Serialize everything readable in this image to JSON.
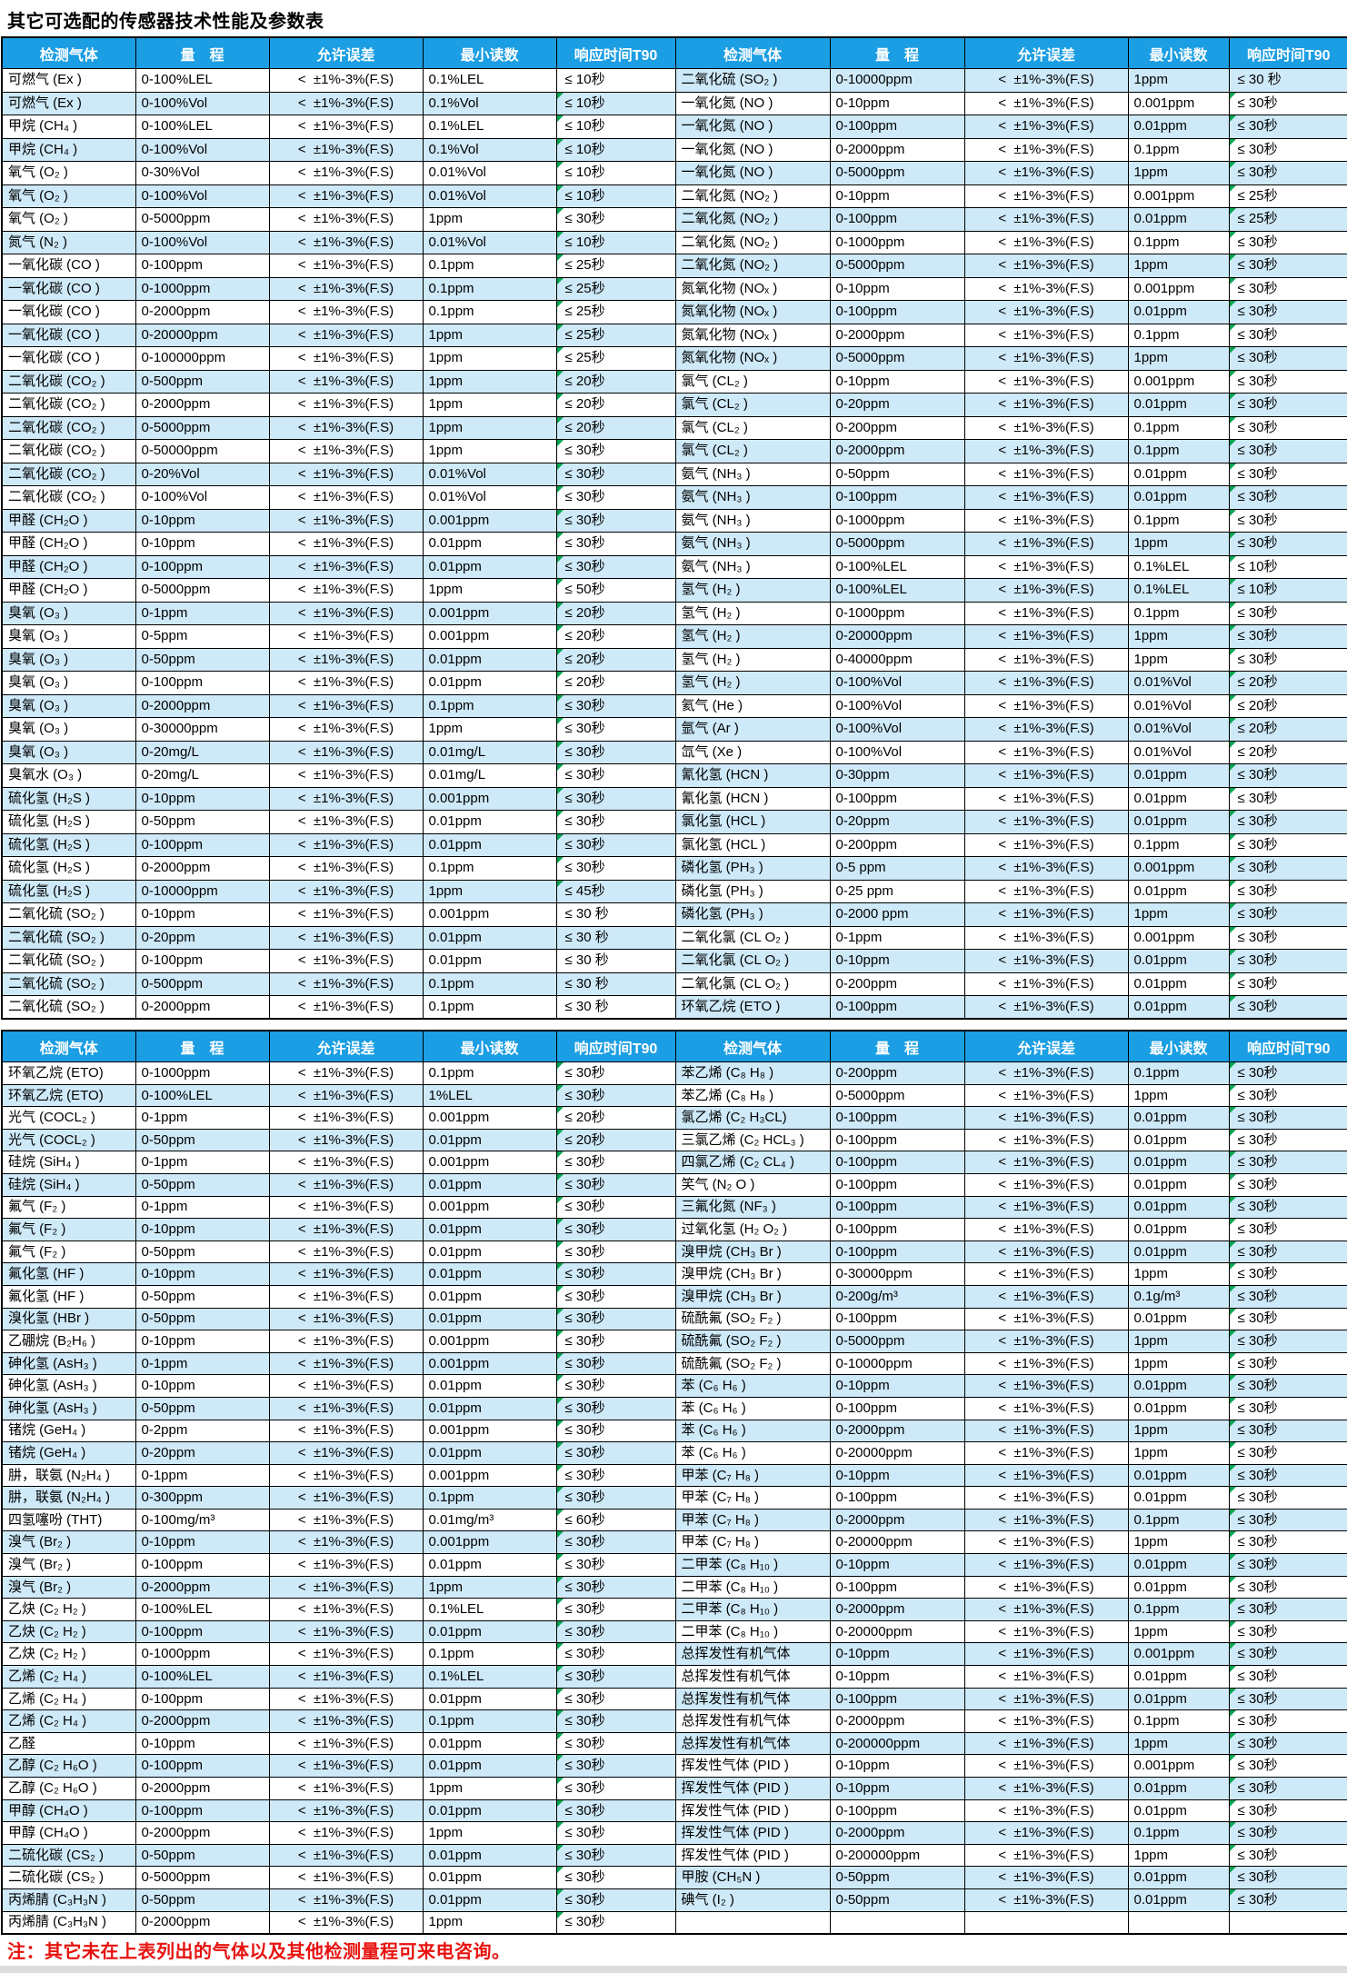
{
  "title": "其它可选配的传感器技术性能及参数表",
  "note": "注：其它未在上表列出的气体以及其他检测量程可来电咨询。",
  "header": {
    "gas": "检测气体",
    "range": "量　程",
    "error": "允许误差",
    "min_reading": "最小读数",
    "t90": "响应时间T90"
  },
  "error_value": "<  ±1%-3%(F.S)",
  "colors": {
    "header_bg": "#1B9EE3",
    "header_text": "#FFFFFF",
    "row_bg": "#FFFFFF",
    "row_alt_bg": "#CEE9F8",
    "border": "#000000",
    "note_color": "#E8120E",
    "triangle": "#00A651",
    "bottom_strip": "#DBDDDE"
  },
  "tables": [
    {
      "left_rows": [
        [
          "可燃气 (Ex )",
          "0-100%LEL",
          "0.1%LEL",
          "≤ 10秒"
        ],
        [
          "可燃气 (Ex )",
          "0-100%Vol",
          "0.1%Vol",
          "≤ 10秒"
        ],
        [
          "甲烷 (CH₄ )",
          "0-100%LEL",
          "0.1%LEL",
          "≤ 10秒"
        ],
        [
          "甲烷 (CH₄ )",
          "0-100%Vol",
          "0.1%Vol",
          "≤ 10秒"
        ],
        [
          "氧气 (O₂ )",
          "0-30%Vol",
          "0.01%Vol",
          "≤ 10秒"
        ],
        [
          "氧气 (O₂ )",
          "0-100%Vol",
          "0.01%Vol",
          "≤ 10秒"
        ],
        [
          "氧气 (O₂ )",
          "0-5000ppm",
          "1ppm",
          "≤ 30秒"
        ],
        [
          "氮气 (N₂ )",
          "0-100%Vol",
          "0.01%Vol",
          "≤ 10秒"
        ],
        [
          "一氧化碳 (CO )",
          "0-100ppm",
          "0.1ppm",
          "≤ 25秒"
        ],
        [
          "一氧化碳 (CO )",
          "0-1000ppm",
          "0.1ppm",
          "≤ 25秒"
        ],
        [
          "一氧化碳 (CO )",
          "0-2000ppm",
          "0.1ppm",
          "≤ 25秒"
        ],
        [
          "一氧化碳 (CO )",
          "0-20000ppm",
          "1ppm",
          "≤ 25秒"
        ],
        [
          "一氧化碳 (CO )",
          "0-100000ppm",
          "1ppm",
          "≤ 25秒"
        ],
        [
          "二氧化碳 (CO₂ )",
          "0-500ppm",
          "1ppm",
          "≤ 20秒"
        ],
        [
          "二氧化碳 (CO₂ )",
          "0-2000ppm",
          "1ppm",
          "≤ 20秒"
        ],
        [
          "二氧化碳 (CO₂ )",
          "0-5000ppm",
          "1ppm",
          "≤ 20秒"
        ],
        [
          "二氧化碳 (CO₂ )",
          "0-50000ppm",
          "1ppm",
          "≤ 30秒"
        ],
        [
          "二氧化碳 (CO₂ )",
          "0-20%Vol",
          "0.01%Vol",
          "≤ 30秒"
        ],
        [
          "二氧化碳 (CO₂ )",
          "0-100%Vol",
          "0.01%Vol",
          "≤ 30秒"
        ],
        [
          "甲醛 (CH₂O )",
          "0-10ppm",
          "0.001ppm",
          "≤ 30秒"
        ],
        [
          "甲醛 (CH₂O )",
          "0-10ppm",
          "0.01ppm",
          "≤ 30秒"
        ],
        [
          "甲醛 (CH₂O )",
          "0-100ppm",
          "0.01ppm",
          "≤ 30秒"
        ],
        [
          "甲醛 (CH₂O )",
          "0-5000ppm",
          "1ppm",
          "≤ 50秒"
        ],
        [
          "臭氧 (O₃ )",
          "0-1ppm",
          "0.001ppm",
          "≤ 20秒"
        ],
        [
          "臭氧 (O₃ )",
          "0-5ppm",
          "0.001ppm",
          "≤ 20秒"
        ],
        [
          "臭氧 (O₃ )",
          "0-50ppm",
          "0.01ppm",
          "≤ 20秒"
        ],
        [
          "臭氧 (O₃ )",
          "0-100ppm",
          "0.01ppm",
          "≤ 20秒"
        ],
        [
          "臭氧 (O₃ )",
          "0-2000ppm",
          "0.1ppm",
          "≤ 30秒"
        ],
        [
          "臭氧 (O₃ )",
          "0-30000ppm",
          "1ppm",
          "≤ 30秒"
        ],
        [
          "臭氧 (O₃ )",
          "0-20mg/L",
          "0.01mg/L",
          "≤ 30秒"
        ],
        [
          "臭氧水 (O₃ )",
          "0-20mg/L",
          "0.01mg/L",
          "≤ 30秒"
        ],
        [
          "硫化氢 (H₂S )",
          "0-10ppm",
          "0.001ppm",
          "≤ 30秒"
        ],
        [
          "硫化氢 (H₂S )",
          "0-50ppm",
          "0.01ppm",
          "≤ 30秒"
        ],
        [
          "硫化氢 (H₂S )",
          "0-100ppm",
          "0.01ppm",
          "≤ 30秒"
        ],
        [
          "硫化氢 (H₂S )",
          "0-2000ppm",
          "0.1ppm",
          "≤ 30秒"
        ],
        [
          "硫化氢 (H₂S )",
          "0-10000ppm",
          "1ppm",
          "≤ 45秒"
        ],
        [
          "二氧化硫 (SO₂ )",
          "0-10ppm",
          "0.001ppm",
          "≤ 30 秒"
        ],
        [
          "二氧化硫 (SO₂ )",
          "0-20ppm",
          "0.01ppm",
          "≤ 30 秒"
        ],
        [
          "二氧化硫 (SO₂ )",
          "0-100ppm",
          "0.01ppm",
          "≤ 30 秒"
        ],
        [
          "二氧化硫 (SO₂ )",
          "0-500ppm",
          "0.1ppm",
          "≤ 30 秒"
        ],
        [
          "二氧化硫 (SO₂ )",
          "0-2000ppm",
          "0.1ppm",
          "≤ 30 秒"
        ]
      ],
      "right_rows": [
        [
          "二氧化硫 (SO₂ )",
          "0-10000ppm",
          "1ppm",
          "≤ 30 秒"
        ],
        [
          "一氧化氮 (NO )",
          "0-10ppm",
          "0.001ppm",
          "≤ 30秒"
        ],
        [
          "一氧化氮 (NO )",
          "0-100ppm",
          "0.01ppm",
          "≤ 30秒"
        ],
        [
          "一氧化氮 (NO )",
          "0-2000ppm",
          "0.1ppm",
          "≤ 30秒"
        ],
        [
          "一氧化氮 (NO )",
          "0-5000ppm",
          "1ppm",
          "≤ 30秒"
        ],
        [
          "二氧化氮 (NO₂ )",
          "0-10ppm",
          "0.001ppm",
          "≤ 25秒"
        ],
        [
          "二氧化氮 (NO₂ )",
          "0-100ppm",
          "0.01ppm",
          "≤ 25秒"
        ],
        [
          "二氧化氮 (NO₂ )",
          "0-1000ppm",
          "0.1ppm",
          "≤ 30秒"
        ],
        [
          "二氧化氮 (NO₂ )",
          "0-5000ppm",
          "1ppm",
          "≤ 30秒"
        ],
        [
          "氮氧化物 (NOₓ )",
          "0-10ppm",
          "0.001ppm",
          "≤ 30秒"
        ],
        [
          "氮氧化物 (NOₓ )",
          "0-100ppm",
          "0.01ppm",
          "≤ 30秒"
        ],
        [
          "氮氧化物 (NOₓ )",
          "0-2000ppm",
          "0.1ppm",
          "≤ 30秒"
        ],
        [
          "氮氧化物 (NOₓ )",
          "0-5000ppm",
          "1ppm",
          "≤ 30秒"
        ],
        [
          "氯气 (CL₂ )",
          "0-10ppm",
          "0.001ppm",
          "≤ 30秒"
        ],
        [
          "氯气 (CL₂ )",
          "0-20ppm",
          "0.01ppm",
          "≤ 30秒"
        ],
        [
          "氯气 (CL₂ )",
          "0-200ppm",
          "0.1ppm",
          "≤ 30秒"
        ],
        [
          "氯气 (CL₂ )",
          "0-2000ppm",
          "0.1ppm",
          "≤ 30秒"
        ],
        [
          "氨气 (NH₃ )",
          "0-50ppm",
          "0.01ppm",
          "≤ 30秒"
        ],
        [
          "氨气 (NH₃ )",
          "0-100ppm",
          "0.01ppm",
          "≤ 30秒"
        ],
        [
          "氨气 (NH₃ )",
          "0-1000ppm",
          "0.1ppm",
          "≤ 30秒"
        ],
        [
          "氨气 (NH₃ )",
          "0-5000ppm",
          "1ppm",
          "≤ 30秒"
        ],
        [
          "氨气 (NH₃ )",
          "0-100%LEL",
          "0.1%LEL",
          "≤ 10秒"
        ],
        [
          "氢气 (H₂ )",
          "0-100%LEL",
          "0.1%LEL",
          "≤ 10秒"
        ],
        [
          "氢气 (H₂ )",
          "0-1000ppm",
          "0.1ppm",
          "≤ 30秒"
        ],
        [
          "氢气 (H₂ )",
          "0-20000ppm",
          "1ppm",
          "≤ 30秒"
        ],
        [
          "氢气 (H₂ )",
          "0-40000ppm",
          "1ppm",
          "≤ 30秒"
        ],
        [
          "氢气 (H₂ )",
          "0-100%Vol",
          "0.01%Vol",
          "≤ 20秒"
        ],
        [
          "氦气 (He )",
          "0-100%Vol",
          "0.01%Vol",
          "≤ 20秒"
        ],
        [
          "氩气 (Ar )",
          "0-100%Vol",
          "0.01%Vol",
          "≤ 20秒"
        ],
        [
          "氙气 (Xe )",
          "0-100%Vol",
          "0.01%Vol",
          "≤ 20秒"
        ],
        [
          "氰化氢 (HCN )",
          "0-30ppm",
          "0.01ppm",
          "≤ 30秒"
        ],
        [
          "氰化氢 (HCN )",
          "0-100ppm",
          "0.01ppm",
          "≤ 30秒"
        ],
        [
          "氯化氢 (HCL )",
          "0-20ppm",
          "0.01ppm",
          "≤ 30秒"
        ],
        [
          "氯化氢 (HCL )",
          "0-200ppm",
          "0.1ppm",
          "≤ 30秒"
        ],
        [
          "磷化氢 (PH₃ )",
          "0-5 ppm",
          "0.001ppm",
          "≤ 30秒"
        ],
        [
          "磷化氢 (PH₃ )",
          "0-25 ppm",
          "0.01ppm",
          "≤ 30秒"
        ],
        [
          "磷化氢 (PH₃ )",
          "0-2000 ppm",
          "1ppm",
          "≤ 30秒"
        ],
        [
          "二氧化氯 (CL O₂ )",
          "0-1ppm",
          "0.001ppm",
          "≤ 30秒"
        ],
        [
          "二氧化氯 (CL O₂ )",
          "0-10ppm",
          "0.01ppm",
          "≤ 30秒"
        ],
        [
          "二氧化氯 (CL O₂ )",
          "0-200ppm",
          "0.01ppm",
          "≤ 30秒"
        ],
        [
          "环氧乙烷 (ETO )",
          "0-100ppm",
          "0.01ppm",
          "≤ 30秒"
        ]
      ]
    },
    {
      "left_rows": [
        [
          "环氧乙烷 (ETO)",
          "0-1000ppm",
          "0.1ppm",
          "≤ 30秒"
        ],
        [
          "环氧乙烷 (ETO)",
          "0-100%LEL",
          "1%LEL",
          "≤ 30秒"
        ],
        [
          "光气 (COCL₂ )",
          "0-1ppm",
          "0.001ppm",
          "≤ 20秒"
        ],
        [
          "光气 (COCL₂ )",
          "0-50ppm",
          "0.01ppm",
          "≤ 20秒"
        ],
        [
          "硅烷 (SiH₄ )",
          "0-1ppm",
          "0.001ppm",
          "≤ 30秒"
        ],
        [
          "硅烷 (SiH₄ )",
          "0-50ppm",
          "0.01ppm",
          "≤ 30秒"
        ],
        [
          "氟气 (F₂ )",
          "0-1ppm",
          "0.001ppm",
          "≤ 30秒"
        ],
        [
          "氟气 (F₂ )",
          "0-10ppm",
          "0.01ppm",
          "≤ 30秒"
        ],
        [
          "氟气 (F₂ )",
          "0-50ppm",
          "0.01ppm",
          "≤ 30秒"
        ],
        [
          "氟化氢 (HF )",
          "0-10ppm",
          "0.01ppm",
          "≤ 30秒"
        ],
        [
          "氟化氢 (HF )",
          "0-50ppm",
          "0.01ppm",
          "≤ 30秒"
        ],
        [
          "溴化氢 (HBr )",
          "0-50ppm",
          "0.01ppm",
          "≤ 30秒"
        ],
        [
          "乙硼烷 (B₂H₆ )",
          "0-10ppm",
          "0.001ppm",
          "≤ 30秒"
        ],
        [
          "砷化氢 (AsH₃ )",
          "0-1ppm",
          "0.001ppm",
          "≤ 30秒"
        ],
        [
          "砷化氢 (AsH₃ )",
          "0-10ppm",
          "0.01ppm",
          "≤ 30秒"
        ],
        [
          "砷化氢 (AsH₃ )",
          "0-50ppm",
          "0.01ppm",
          "≤ 30秒"
        ],
        [
          "锗烷 (GeH₄ )",
          "0-2ppm",
          "0.001ppm",
          "≤ 30秒"
        ],
        [
          "锗烷 (GeH₄ )",
          "0-20ppm",
          "0.01ppm",
          "≤ 30秒"
        ],
        [
          "肼，联氨 (N₂H₄ )",
          "0-1ppm",
          "0.001ppm",
          "≤ 30秒"
        ],
        [
          "肼，联氨 (N₂H₄ )",
          "0-300ppm",
          "0.1ppm",
          "≤ 30秒"
        ],
        [
          "四氢噻吩 (THT)",
          "0-100mg/m³",
          "0.01mg/m³",
          "≤ 60秒"
        ],
        [
          "溴气 (Br₂ )",
          "0-10ppm",
          "0.001ppm",
          "≤ 30秒"
        ],
        [
          "溴气 (Br₂ )",
          "0-100ppm",
          "0.01ppm",
          "≤ 30秒"
        ],
        [
          "溴气 (Br₂ )",
          "0-2000ppm",
          "1ppm",
          "≤ 30秒"
        ],
        [
          "乙炔 (C₂ H₂ )",
          "0-100%LEL",
          "0.1%LEL",
          "≤ 30秒"
        ],
        [
          "乙炔 (C₂ H₂ )",
          "0-100ppm",
          "0.01ppm",
          "≤ 30秒"
        ],
        [
          "乙炔 (C₂ H₂ )",
          "0-1000ppm",
          "0.1ppm",
          "≤ 30秒"
        ],
        [
          "乙烯 (C₂ H₄ )",
          "0-100%LEL",
          "0.1%LEL",
          "≤ 30秒"
        ],
        [
          "乙烯 (C₂ H₄ )",
          "0-100ppm",
          "0.01ppm",
          "≤ 30秒"
        ],
        [
          "乙烯 (C₂ H₄ )",
          "0-2000ppm",
          "0.1ppm",
          "≤ 30秒"
        ],
        [
          "乙醛",
          "0-10ppm",
          "0.01ppm",
          "≤ 30秒"
        ],
        [
          "乙醇 (C₂ H₆O )",
          "0-100ppm",
          "0.01ppm",
          "≤ 30秒"
        ],
        [
          "乙醇 (C₂ H₆O )",
          "0-2000ppm",
          "1ppm",
          "≤ 30秒"
        ],
        [
          "甲醇 (CH₄O )",
          "0-100ppm",
          "0.01ppm",
          "≤ 30秒"
        ],
        [
          "甲醇 (CH₄O )",
          "0-2000ppm",
          "1ppm",
          "≤ 30秒"
        ],
        [
          "二硫化碳 (CS₂ )",
          "0-50ppm",
          "0.01ppm",
          "≤ 30秒"
        ],
        [
          "二硫化碳 (CS₂ )",
          "0-5000ppm",
          "0.01ppm",
          "≤ 30秒"
        ],
        [
          "丙烯腈 (C₃H₃N )",
          "0-50ppm",
          "0.01ppm",
          "≤ 30秒"
        ],
        [
          "丙烯腈 (C₃H₃N )",
          "0-2000ppm",
          "1ppm",
          "≤ 30秒"
        ]
      ],
      "right_rows": [
        [
          "苯乙烯 (C₈ H₈ )",
          "0-200ppm",
          "0.1ppm",
          "≤ 30秒"
        ],
        [
          "苯乙烯 (C₈ H₈ )",
          "0-5000ppm",
          "1ppm",
          "≤ 30秒"
        ],
        [
          "氯乙烯 (C₂ H₃CL)",
          "0-100ppm",
          "0.01ppm",
          "≤ 30秒"
        ],
        [
          "三氯乙烯 (C₂ HCL₃ )",
          "0-100ppm",
          "0.01ppm",
          "≤ 30秒"
        ],
        [
          "四氯乙烯 (C₂ CL₄ )",
          "0-100ppm",
          "0.01ppm",
          "≤ 30秒"
        ],
        [
          "笑气 (N₂ O )",
          "0-100ppm",
          "0.01ppm",
          "≤ 30秒"
        ],
        [
          "三氟化氮 (NF₃ )",
          "0-100ppm",
          "0.01ppm",
          "≤ 30秒"
        ],
        [
          "过氧化氢 (H₂ O₂ )",
          "0-100ppm",
          "0.01ppm",
          "≤ 30秒"
        ],
        [
          "溴甲烷 (CH₃ Br )",
          "0-100ppm",
          "0.01ppm",
          "≤ 30秒"
        ],
        [
          "溴甲烷 (CH₃ Br )",
          "0-30000ppm",
          "1ppm",
          "≤ 30秒"
        ],
        [
          "溴甲烷 (CH₃ Br )",
          "0-200g/m³",
          "0.1g/m³",
          "≤ 30秒"
        ],
        [
          "硫酰氟 (SO₂ F₂ )",
          "0-100ppm",
          "0.01ppm",
          "≤ 30秒"
        ],
        [
          "硫酰氟 (SO₂ F₂ )",
          "0-5000ppm",
          "1ppm",
          "≤ 30秒"
        ],
        [
          "硫酰氟 (SO₂ F₂ )",
          "0-10000ppm",
          "1ppm",
          "≤ 30秒"
        ],
        [
          "苯 (C₆ H₆ )",
          "0-10ppm",
          "0.01ppm",
          "≤ 30秒"
        ],
        [
          "苯 (C₆ H₆ )",
          "0-100ppm",
          "0.01ppm",
          "≤ 30秒"
        ],
        [
          "苯 (C₆ H₆ )",
          "0-2000ppm",
          "1ppm",
          "≤ 30秒"
        ],
        [
          "苯 (C₆ H₆ )",
          "0-20000ppm",
          "1ppm",
          "≤ 30秒"
        ],
        [
          "甲苯 (C₇ H₈ )",
          "0-10ppm",
          "0.01ppm",
          "≤ 30秒"
        ],
        [
          "甲苯 (C₇ H₈ )",
          "0-100ppm",
          "0.01ppm",
          "≤ 30秒"
        ],
        [
          "甲苯 (C₇ H₈ )",
          "0-2000ppm",
          "0.1ppm",
          "≤ 30秒"
        ],
        [
          "甲苯 (C₇ H₈ )",
          "0-20000ppm",
          "1ppm",
          "≤ 30秒"
        ],
        [
          "二甲苯 (C₈ H₁₀ )",
          "0-10ppm",
          "0.01ppm",
          "≤ 30秒"
        ],
        [
          "二甲苯 (C₈ H₁₀ )",
          "0-100ppm",
          "0.01ppm",
          "≤ 30秒"
        ],
        [
          "二甲苯 (C₈ H₁₀ )",
          "0-2000ppm",
          "0.1ppm",
          "≤ 30秒"
        ],
        [
          "二甲苯 (C₈ H₁₀ )",
          "0-20000ppm",
          "1ppm",
          "≤ 30秒"
        ],
        [
          "总挥发性有机气体",
          "0-10ppm",
          "0.001ppm",
          "≤ 30秒"
        ],
        [
          "总挥发性有机气体",
          "0-10ppm",
          "0.01ppm",
          "≤ 30秒"
        ],
        [
          "总挥发性有机气体",
          "0-100ppm",
          "0.01ppm",
          "≤ 30秒"
        ],
        [
          "总挥发性有机气体",
          "0-2000ppm",
          "0.1ppm",
          "≤ 30秒"
        ],
        [
          "总挥发性有机气体",
          "0-200000ppm",
          "1ppm",
          "≤ 30秒"
        ],
        [
          "挥发性气体 (PID )",
          "0-10ppm",
          "0.001ppm",
          "≤ 30秒"
        ],
        [
          "挥发性气体 (PID )",
          "0-10ppm",
          "0.01ppm",
          "≤ 30秒"
        ],
        [
          "挥发性气体 (PID )",
          "0-100ppm",
          "0.01ppm",
          "≤ 30秒"
        ],
        [
          "挥发性气体 (PID )",
          "0-2000ppm",
          "0.1ppm",
          "≤ 30秒"
        ],
        [
          "挥发性气体 (PID )",
          "0-200000ppm",
          "1ppm",
          "≤ 30秒"
        ],
        [
          "甲胺 (CH₅N )",
          "0-50ppm",
          "0.01ppm",
          "≤ 30秒"
        ],
        [
          "碘气 (I₂ )",
          "0-50ppm",
          "0.01ppm",
          "≤ 30秒"
        ],
        [
          "",
          "",
          "",
          ""
        ]
      ]
    }
  ],
  "shade_overrides": [
    {
      "table": 1,
      "side": "right",
      "row": 37,
      "shade": "alt"
    },
    {
      "table": 1,
      "side": "right",
      "row": 38,
      "shade": "plain"
    }
  ],
  "no_triangle": [
    {
      "table": 0,
      "side": "left",
      "row": 0
    }
  ]
}
